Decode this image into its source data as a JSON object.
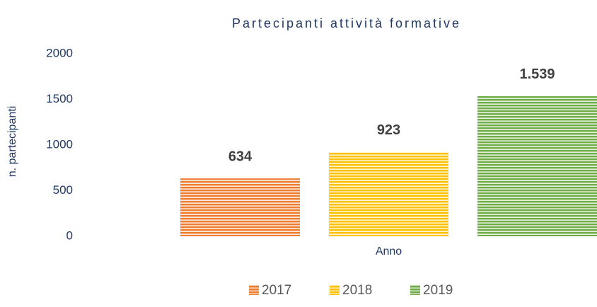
{
  "chart_data": {
    "type": "bar",
    "title": "Partecipanti attività formative",
    "categories": [
      "Anno"
    ],
    "y_label": "n. partecipanti",
    "series": [
      {
        "name": "2017",
        "color": "#ED7D31",
        "values": [
          634
        ],
        "value_labels": [
          "634"
        ]
      },
      {
        "name": "2018",
        "color": "#FFC000",
        "values": [
          923
        ],
        "value_labels": [
          "923"
        ]
      },
      {
        "name": "2019",
        "color": "#70AD47",
        "values": [
          1539
        ],
        "value_labels": [
          "1.539"
        ]
      }
    ],
    "ylim": [
      0,
      2000
    ],
    "yticks": [
      0,
      500,
      1000,
      1500,
      2000
    ],
    "grid": false,
    "legend": "bottom"
  }
}
